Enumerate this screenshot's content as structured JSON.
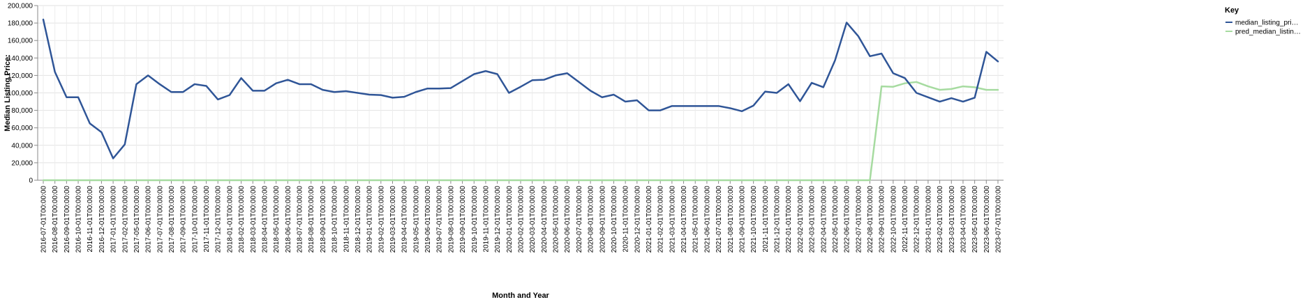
{
  "chart_data": {
    "type": "line",
    "xlabel": "Month and Year",
    "ylabel": "Median Listing Price:",
    "ylim": [
      0,
      200000
    ],
    "yticks": [
      "0",
      "20,000",
      "40,000",
      "60,000",
      "80,000",
      "100,000",
      "120,000",
      "140,000",
      "160,000",
      "180,000",
      "200,000"
    ],
    "grid": true,
    "legend": {
      "title": "Key",
      "placement": "top-right",
      "entries": [
        "median_listing_pri…",
        "pred_median_listin…"
      ]
    },
    "categories": [
      "2016-07-01T00:00:00",
      "2016-08-01T00:00:00",
      "2016-09-01T00:00:00",
      "2016-10-01T00:00:00",
      "2016-11-01T00:00:00",
      "2016-12-01T00:00:00",
      "2017-01-01T00:00:00",
      "2017-02-01T00:00:00",
      "2017-05-01T00:00:00",
      "2017-06-01T00:00:00",
      "2017-07-01T00:00:00",
      "2017-08-01T00:00:00",
      "2017-09-01T00:00:00",
      "2017-10-01T00:00:00",
      "2017-11-01T00:00:00",
      "2017-12-01T00:00:00",
      "2018-01-01T00:00:00",
      "2018-02-01T00:00:00",
      "2018-03-01T00:00:00",
      "2018-04-01T00:00:00",
      "2018-05-01T00:00:00",
      "2018-06-01T00:00:00",
      "2018-07-01T00:00:00",
      "2018-08-01T00:00:00",
      "2018-09-01T00:00:00",
      "2018-10-01T00:00:00",
      "2018-11-01T00:00:00",
      "2018-12-01T00:00:00",
      "2019-01-01T00:00:00",
      "2019-02-01T00:00:00",
      "2019-03-01T00:00:00",
      "2019-04-01T00:00:00",
      "2019-05-01T00:00:00",
      "2019-06-01T00:00:00",
      "2019-07-01T00:00:00",
      "2019-08-01T00:00:00",
      "2019-09-01T00:00:00",
      "2019-10-01T00:00:00",
      "2019-11-01T00:00:00",
      "2019-12-01T00:00:00",
      "2020-01-01T00:00:00",
      "2020-02-01T00:00:00",
      "2020-03-01T00:00:00",
      "2020-04-01T00:00:00",
      "2020-05-01T00:00:00",
      "2020-06-01T00:00:00",
      "2020-07-01T00:00:00",
      "2020-08-01T00:00:00",
      "2020-09-01T00:00:00",
      "2020-10-01T00:00:00",
      "2020-11-01T00:00:00",
      "2020-12-01T00:00:00",
      "2021-01-01T00:00:00",
      "2021-02-01T00:00:00",
      "2021-03-01T00:00:00",
      "2021-04-01T00:00:00",
      "2021-05-01T00:00:00",
      "2021-06-01T00:00:00",
      "2021-07-01T00:00:00",
      "2021-08-01T00:00:00",
      "2021-09-01T00:00:00",
      "2021-10-01T00:00:00",
      "2021-11-01T00:00:00",
      "2021-12-01T00:00:00",
      "2022-01-01T00:00:00",
      "2022-02-01T00:00:00",
      "2022-03-01T00:00:00",
      "2022-04-01T00:00:00",
      "2022-05-01T00:00:00",
      "2022-06-01T00:00:00",
      "2022-07-01T00:00:00",
      "2022-08-01T00:00:00",
      "2022-09-01T00:00:00",
      "2022-10-01T00:00:00",
      "2022-11-01T00:00:00",
      "2022-12-01T00:00:00",
      "2023-01-01T00:00:00",
      "2023-02-01T00:00:00",
      "2023-03-01T00:00:00",
      "2023-04-01T00:00:00",
      "2023-05-01T00:00:00",
      "2023-06-01T00:00:00",
      "2023-07-01T00:00:00"
    ],
    "series": [
      {
        "name": "median_listing_pri…",
        "color": "#2f5597",
        "values": [
          184000,
          124000,
          95000,
          95000,
          65000,
          55000,
          25000,
          41000,
          110000,
          120000,
          110000,
          101000,
          101000,
          110000,
          108000,
          92500,
          97500,
          117000,
          102500,
          102500,
          111000,
          115000,
          110000,
          110000,
          103500,
          101000,
          102000,
          100000,
          98000,
          97500,
          94500,
          95500,
          101000,
          105000,
          105000,
          105500,
          113500,
          121500,
          125000,
          121500,
          100000,
          107000,
          114500,
          115000,
          120000,
          122500,
          112500,
          102500,
          95000,
          98000,
          90000,
          91500,
          80000,
          80000,
          85000,
          85000,
          85000,
          85000,
          85000,
          82500,
          79000,
          85500,
          101500,
          100000,
          110000,
          90500,
          111500,
          106500,
          137000,
          180500,
          165000,
          142000,
          145000,
          122500,
          117000,
          100000,
          95000,
          90000,
          94000,
          90000,
          94500,
          147000,
          136000
        ]
      },
      {
        "name": "pred_median_listin…",
        "color": "#a6dba0",
        "values": [
          0,
          0,
          0,
          0,
          0,
          0,
          0,
          0,
          0,
          0,
          0,
          0,
          0,
          0,
          0,
          0,
          0,
          0,
          0,
          0,
          0,
          0,
          0,
          0,
          0,
          0,
          0,
          0,
          0,
          0,
          0,
          0,
          0,
          0,
          0,
          0,
          0,
          0,
          0,
          0,
          0,
          0,
          0,
          0,
          0,
          0,
          0,
          0,
          0,
          0,
          0,
          0,
          0,
          0,
          0,
          0,
          0,
          0,
          0,
          0,
          0,
          0,
          0,
          0,
          0,
          0,
          0,
          0,
          0,
          0,
          0,
          0,
          107500,
          107000,
          111000,
          112500,
          107500,
          103500,
          104500,
          107500,
          106500,
          103500,
          103500
        ]
      }
    ]
  }
}
